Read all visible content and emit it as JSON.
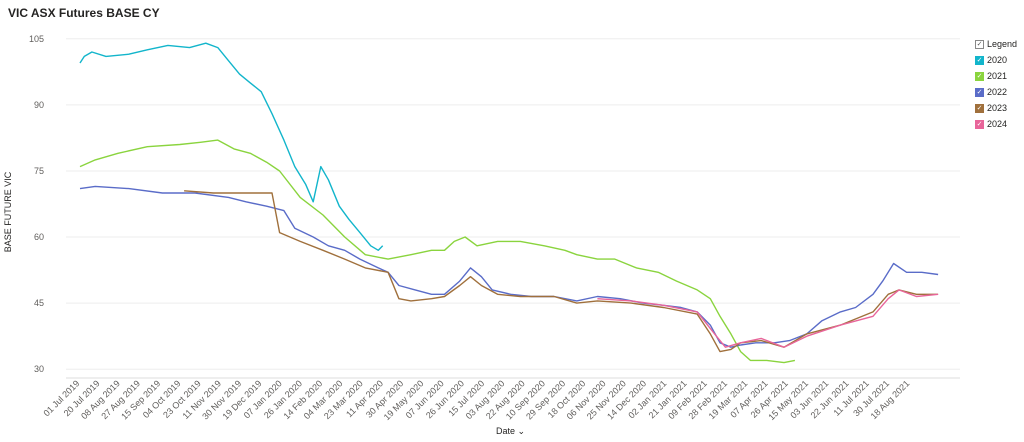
{
  "header": {
    "title": "VIC ASX Futures BASE CY"
  },
  "legend": {
    "title": "Legend",
    "items": [
      {
        "label": "2020",
        "color": "#12B5CB"
      },
      {
        "label": "2021",
        "color": "#8AD43E"
      },
      {
        "label": "2022",
        "color": "#5A6CC8"
      },
      {
        "label": "2023",
        "color": "#A0703C"
      },
      {
        "label": "2024",
        "color": "#E8659A"
      }
    ]
  },
  "xaxis": {
    "label": "Date",
    "icon": "chevron-down-icon"
  },
  "chart_data": {
    "type": "line",
    "title": "VIC ASX Futures BASE CY",
    "xlabel": "Date",
    "ylabel": "BASE FUTURE VIC",
    "ylim": [
      28,
      107
    ],
    "yticks": [
      30,
      45,
      60,
      75,
      90,
      105
    ],
    "grid": true,
    "legend_position": "right",
    "x_tick_labels": [
      "01 Jul 2019",
      "20 Jul 2019",
      "08 Aug 2019",
      "27 Aug 2019",
      "15 Sep 2019",
      "04 Oct 2019",
      "23 Oct 2019",
      "11 Nov 2019",
      "30 Nov 2019",
      "19 Dec 2019",
      "07 Jan 2020",
      "26 Jan 2020",
      "14 Feb 2020",
      "04 Mar 2020",
      "23 Mar 2020",
      "11 Apr 2020",
      "30 Apr 2020",
      "19 May 2020",
      "07 Jun 2020",
      "26 Jun 2020",
      "15 Jul 2020",
      "03 Aug 2020",
      "22 Aug 2020",
      "10 Sep 2020",
      "29 Sep 2020",
      "18 Oct 2020",
      "06 Nov 2020",
      "25 Nov 2020",
      "14 Dec 2020",
      "02 Jan 2021",
      "21 Jan 2021",
      "09 Feb 2021",
      "28 Feb 2021",
      "19 Mar 2021",
      "07 Apr 2021",
      "26 Apr 2021",
      "15 May 2021",
      "03 Jun 2021",
      "22 Jun 2021",
      "11 Jul 2021",
      "30 Jul 2021",
      "18 Aug 2021"
    ],
    "series": [
      {
        "name": "2020",
        "points": [
          [
            "2019-07-01",
            99.5
          ],
          [
            "2019-07-05",
            101
          ],
          [
            "2019-07-12",
            102
          ],
          [
            "2019-07-25",
            101
          ],
          [
            "2019-08-15",
            101.5
          ],
          [
            "2019-09-01",
            102.5
          ],
          [
            "2019-09-20",
            103.5
          ],
          [
            "2019-10-10",
            103
          ],
          [
            "2019-10-25",
            104
          ],
          [
            "2019-11-05",
            103
          ],
          [
            "2019-11-15",
            100
          ],
          [
            "2019-11-25",
            97
          ],
          [
            "2019-12-05",
            95
          ],
          [
            "2019-12-15",
            93
          ],
          [
            "2019-12-25",
            88
          ],
          [
            "2020-01-05",
            82
          ],
          [
            "2020-01-15",
            76
          ],
          [
            "2020-01-25",
            72
          ],
          [
            "2020-02-01",
            68
          ],
          [
            "2020-02-08",
            76
          ],
          [
            "2020-02-15",
            73
          ],
          [
            "2020-02-25",
            67
          ],
          [
            "2020-03-05",
            64
          ],
          [
            "2020-03-15",
            61
          ],
          [
            "2020-03-25",
            58
          ],
          [
            "2020-04-01",
            57
          ],
          [
            "2020-04-05",
            58
          ]
        ]
      },
      {
        "name": "2021",
        "points": [
          [
            "2019-07-01",
            76
          ],
          [
            "2019-07-15",
            77.5
          ],
          [
            "2019-08-05",
            79
          ],
          [
            "2019-09-01",
            80.5
          ],
          [
            "2019-10-01",
            81
          ],
          [
            "2019-10-20",
            81.5
          ],
          [
            "2019-11-05",
            82
          ],
          [
            "2019-11-20",
            80
          ],
          [
            "2019-12-05",
            79
          ],
          [
            "2019-12-20",
            77
          ],
          [
            "2020-01-01",
            75
          ],
          [
            "2020-01-20",
            69
          ],
          [
            "2020-02-10",
            65
          ],
          [
            "2020-03-01",
            60
          ],
          [
            "2020-03-20",
            56
          ],
          [
            "2020-04-10",
            55
          ],
          [
            "2020-05-01",
            56
          ],
          [
            "2020-05-20",
            57
          ],
          [
            "2020-06-01",
            57
          ],
          [
            "2020-06-10",
            59
          ],
          [
            "2020-06-20",
            60
          ],
          [
            "2020-07-01",
            58
          ],
          [
            "2020-07-20",
            59
          ],
          [
            "2020-08-10",
            59
          ],
          [
            "2020-09-01",
            58
          ],
          [
            "2020-09-20",
            57
          ],
          [
            "2020-10-01",
            56
          ],
          [
            "2020-10-20",
            55
          ],
          [
            "2020-11-05",
            55
          ],
          [
            "2020-11-25",
            53
          ],
          [
            "2020-12-15",
            52
          ],
          [
            "2021-01-01",
            50
          ],
          [
            "2021-01-20",
            48
          ],
          [
            "2021-02-01",
            46
          ],
          [
            "2021-02-10",
            42
          ],
          [
            "2021-02-20",
            38
          ],
          [
            "2021-03-01",
            34
          ],
          [
            "2021-03-10",
            32
          ],
          [
            "2021-03-25",
            32
          ],
          [
            "2021-04-10",
            31.5
          ],
          [
            "2021-04-20",
            32
          ]
        ]
      },
      {
        "name": "2022",
        "points": [
          [
            "2019-07-01",
            71
          ],
          [
            "2019-07-15",
            71.5
          ],
          [
            "2019-08-15",
            71
          ],
          [
            "2019-09-15",
            70
          ],
          [
            "2019-10-15",
            70
          ],
          [
            "2019-11-15",
            69
          ],
          [
            "2019-12-01",
            68
          ],
          [
            "2019-12-20",
            67
          ],
          [
            "2020-01-05",
            66
          ],
          [
            "2020-01-15",
            62
          ],
          [
            "2020-02-01",
            60
          ],
          [
            "2020-02-15",
            58
          ],
          [
            "2020-03-01",
            57
          ],
          [
            "2020-03-15",
            55
          ],
          [
            "2020-04-01",
            53
          ],
          [
            "2020-04-10",
            52
          ],
          [
            "2020-04-20",
            49
          ],
          [
            "2020-05-05",
            48
          ],
          [
            "2020-05-20",
            47
          ],
          [
            "2020-06-01",
            47
          ],
          [
            "2020-06-15",
            50
          ],
          [
            "2020-06-25",
            53
          ],
          [
            "2020-07-05",
            51
          ],
          [
            "2020-07-15",
            48
          ],
          [
            "2020-08-01",
            47
          ],
          [
            "2020-08-20",
            46.5
          ],
          [
            "2020-09-10",
            46.5
          ],
          [
            "2020-10-01",
            45.5
          ],
          [
            "2020-10-20",
            46.5
          ],
          [
            "2020-11-10",
            46
          ],
          [
            "2020-12-01",
            45
          ],
          [
            "2020-12-20",
            44.5
          ],
          [
            "2021-01-05",
            44
          ],
          [
            "2021-01-20",
            43
          ],
          [
            "2021-02-01",
            40
          ],
          [
            "2021-02-10",
            36
          ],
          [
            "2021-02-20",
            35
          ],
          [
            "2021-03-01",
            35.5
          ],
          [
            "2021-03-15",
            36
          ],
          [
            "2021-04-01",
            36
          ],
          [
            "2021-04-15",
            36.5
          ],
          [
            "2021-05-01",
            38
          ],
          [
            "2021-05-15",
            41
          ],
          [
            "2021-06-01",
            43
          ],
          [
            "2021-06-15",
            44
          ],
          [
            "2021-07-01",
            47
          ],
          [
            "2021-07-10",
            50
          ],
          [
            "2021-07-20",
            54
          ],
          [
            "2021-08-01",
            52
          ],
          [
            "2021-08-15",
            52
          ],
          [
            "2021-08-30",
            51.5
          ]
        ]
      },
      {
        "name": "2023",
        "points": [
          [
            "2019-10-05",
            70.5
          ],
          [
            "2019-11-01",
            70
          ],
          [
            "2019-12-01",
            70
          ],
          [
            "2019-12-25",
            70
          ],
          [
            "2020-01-01",
            61
          ],
          [
            "2020-01-20",
            59
          ],
          [
            "2020-02-10",
            57
          ],
          [
            "2020-03-01",
            55
          ],
          [
            "2020-03-20",
            53
          ],
          [
            "2020-04-10",
            52
          ],
          [
            "2020-04-20",
            46
          ],
          [
            "2020-05-01",
            45.5
          ],
          [
            "2020-05-20",
            46
          ],
          [
            "2020-06-01",
            46.5
          ],
          [
            "2020-06-15",
            49
          ],
          [
            "2020-06-25",
            51
          ],
          [
            "2020-07-05",
            49
          ],
          [
            "2020-07-20",
            47
          ],
          [
            "2020-08-10",
            46.5
          ],
          [
            "2020-09-10",
            46.5
          ],
          [
            "2020-10-01",
            45
          ],
          [
            "2020-10-20",
            45.5
          ],
          [
            "2020-11-20",
            45
          ],
          [
            "2020-12-20",
            44
          ],
          [
            "2021-01-20",
            42.5
          ],
          [
            "2021-02-01",
            38
          ],
          [
            "2021-02-10",
            34
          ],
          [
            "2021-02-20",
            34.5
          ],
          [
            "2021-03-01",
            36
          ],
          [
            "2021-03-20",
            36.5
          ],
          [
            "2021-04-10",
            35
          ],
          [
            "2021-05-01",
            38
          ],
          [
            "2021-06-01",
            40
          ],
          [
            "2021-07-01",
            43
          ],
          [
            "2021-07-15",
            47
          ],
          [
            "2021-07-25",
            48
          ],
          [
            "2021-08-10",
            47
          ],
          [
            "2021-08-30",
            47
          ]
        ]
      },
      {
        "name": "2024",
        "points": [
          [
            "2020-10-20",
            46
          ],
          [
            "2020-11-20",
            45.5
          ],
          [
            "2020-12-20",
            44.5
          ],
          [
            "2021-01-20",
            43
          ],
          [
            "2021-02-05",
            38
          ],
          [
            "2021-02-15",
            35
          ],
          [
            "2021-03-01",
            36
          ],
          [
            "2021-03-20",
            37
          ],
          [
            "2021-04-10",
            35
          ],
          [
            "2021-05-01",
            37.5
          ],
          [
            "2021-06-01",
            40
          ],
          [
            "2021-07-01",
            42
          ],
          [
            "2021-07-15",
            46
          ],
          [
            "2021-07-25",
            48
          ],
          [
            "2021-08-10",
            46.5
          ],
          [
            "2021-08-30",
            47
          ]
        ]
      }
    ]
  }
}
